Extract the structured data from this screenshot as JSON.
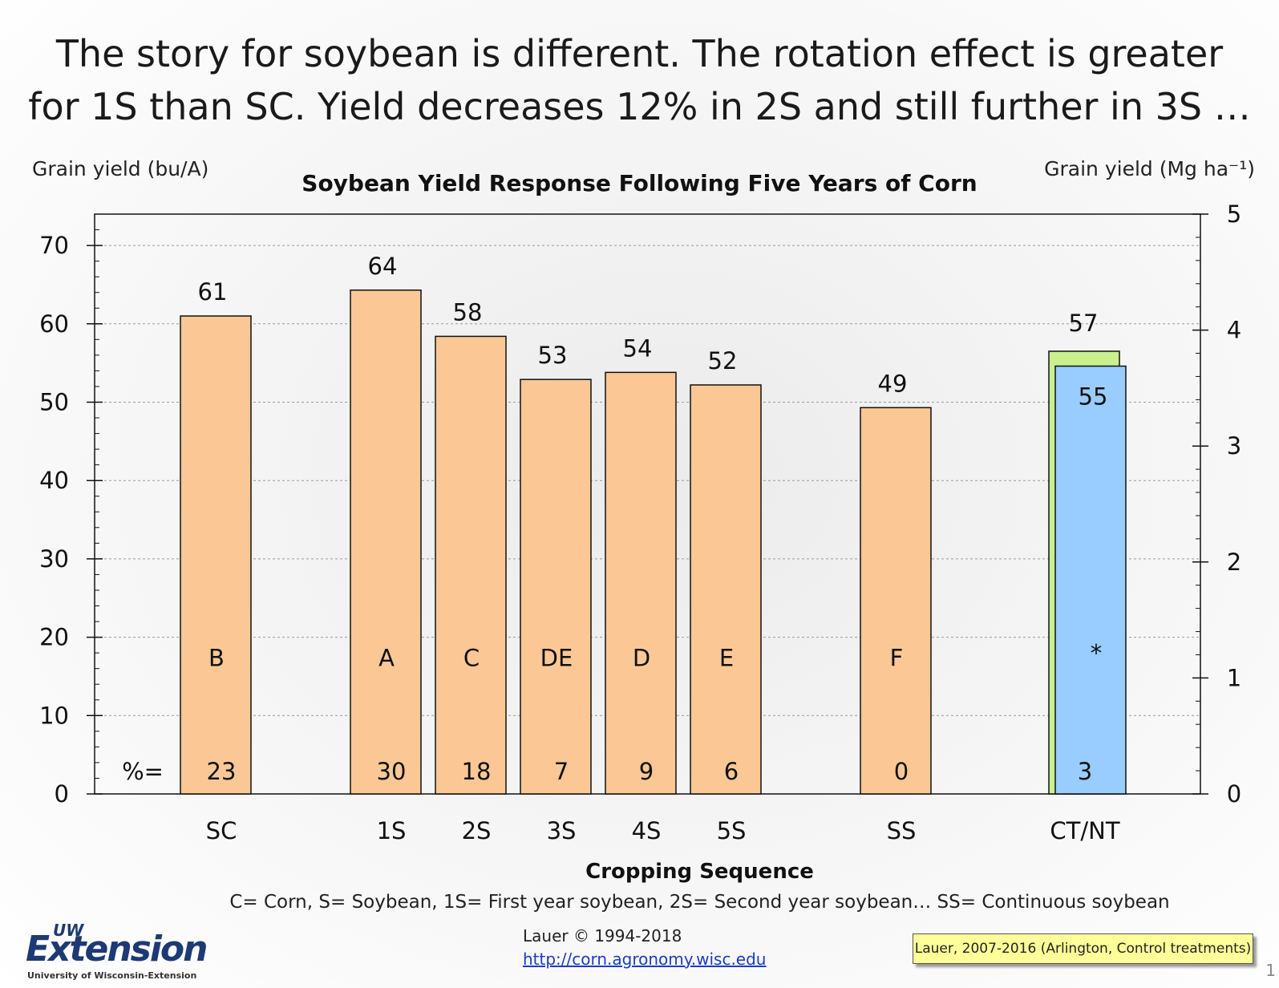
{
  "slide": {
    "title_line1": "The story for soybean is different. The rotation effect is greater",
    "title_line2": "for 1S than SC. Yield decreases 12% in 2S and still further in 3S …",
    "legend_note": "C= Corn, S= Soybean, 1S= First year soybean, 2S= Second year soybean… SS= Continuous soybean",
    "credit": "Lauer © 1994-2018",
    "url": "http://corn.agronomy.wisc.edu",
    "source_note": "Lauer, 2007-2016 (Arlington, Control treatments)",
    "logo_uw": "UW",
    "logo_text": "Extension",
    "logo_sub": "University of Wisconsin-Extension",
    "slide_number": "1"
  },
  "chart_data": {
    "type": "bar",
    "title": "Soybean Yield Response Following Five Years of Corn",
    "xlabel": "Cropping Sequence",
    "ylabel": "Grain yield (bu/A)",
    "ylabel_right": "Grain yield (Mg ha⁻¹)",
    "ylim": [
      0,
      74
    ],
    "yticks": [
      0,
      10,
      20,
      30,
      40,
      50,
      60,
      70
    ],
    "ylim_right": [
      0,
      5
    ],
    "yticks_right": [
      0,
      1,
      2,
      3,
      4,
      5
    ],
    "grid": true,
    "percent_prefix": "%=",
    "colors": {
      "main": "#fbc895",
      "ct": "#c8f08f",
      "nt": "#99ccff",
      "edge": "#111111",
      "grid": "#9a9a9a"
    },
    "categories": [
      "SC",
      "1S",
      "2S",
      "3S",
      "4S",
      "5S",
      "SS",
      "CT/NT"
    ],
    "bars": [
      {
        "category": "SC",
        "value": 61,
        "label": "61",
        "letter": "B",
        "percent": "23",
        "slot": 0
      },
      {
        "category": "1S",
        "value": 64.3,
        "label": "64",
        "letter": "A",
        "percent": "30",
        "slot": 2
      },
      {
        "category": "2S",
        "value": 58.4,
        "label": "58",
        "letter": "C",
        "percent": "18",
        "slot": 3
      },
      {
        "category": "3S",
        "value": 52.9,
        "label": "53",
        "letter": "DE",
        "percent": "7",
        "slot": 4
      },
      {
        "category": "4S",
        "value": 53.8,
        "label": "54",
        "letter": "D",
        "percent": "9",
        "slot": 5
      },
      {
        "category": "5S",
        "value": 52.2,
        "label": "52",
        "letter": "E",
        "percent": "6",
        "slot": 6
      },
      {
        "category": "SS",
        "value": 49.3,
        "label": "49",
        "letter": "F",
        "percent": "0",
        "slot": 8
      }
    ],
    "ctnt": {
      "category": "CT/NT",
      "slot": 10,
      "ct_value": 56.5,
      "ct_label": "57",
      "nt_value": 54.6,
      "nt_label": "55",
      "letter": "*",
      "percent": "3"
    }
  }
}
